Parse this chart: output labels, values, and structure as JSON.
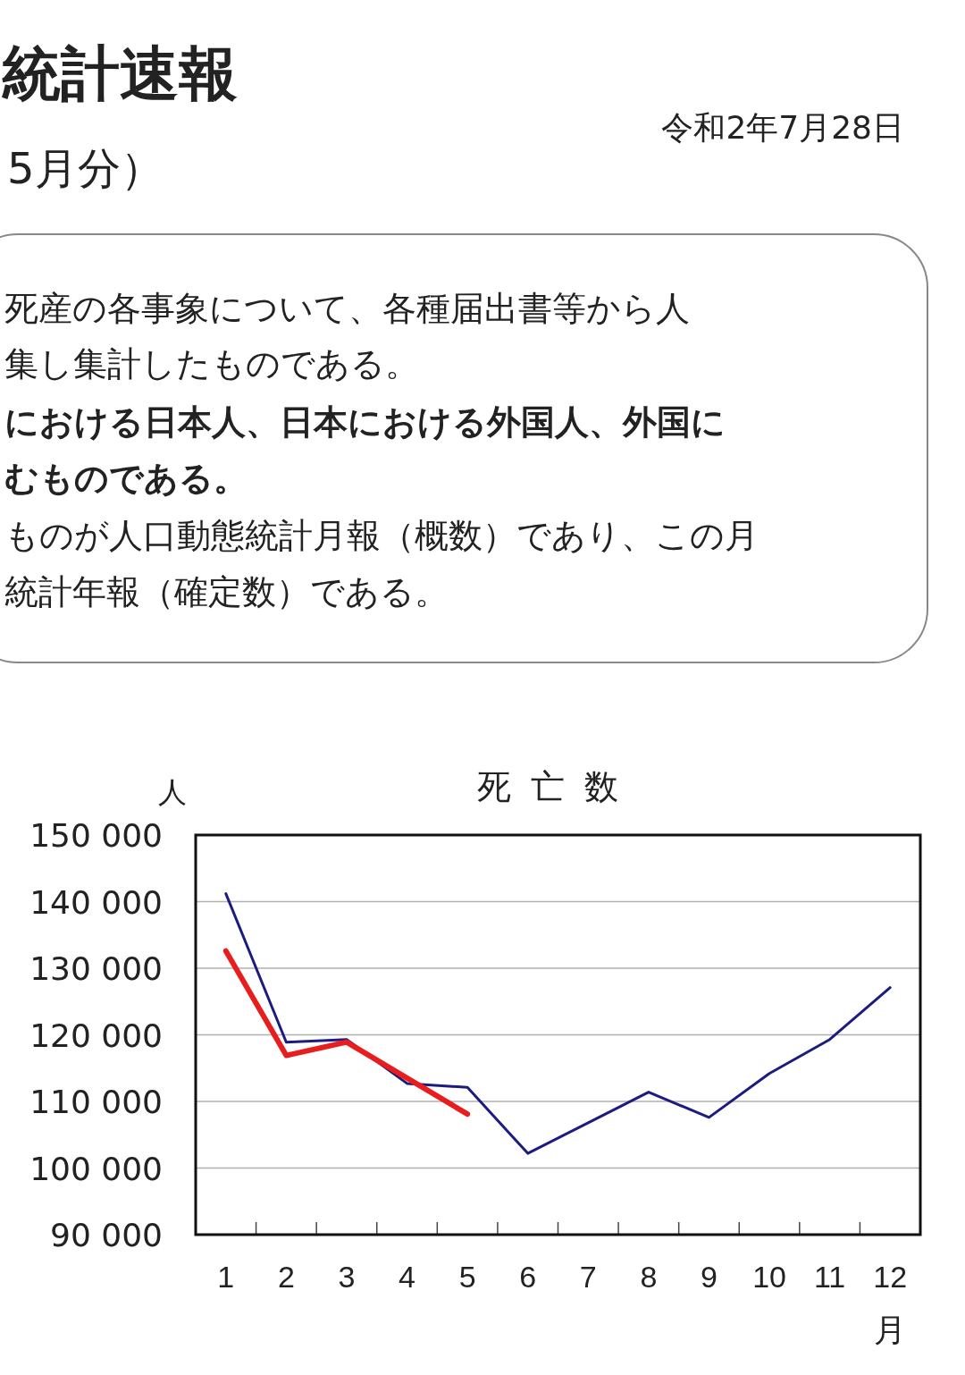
{
  "chart_data": {
    "type": "line",
    "title": "死亡数",
    "ylabel": "人",
    "xlabel": "月",
    "categories": [
      "1",
      "2",
      "3",
      "4",
      "5",
      "6",
      "7",
      "8",
      "9",
      "10",
      "11",
      "12"
    ],
    "series": [
      {
        "color": "#1c1c80",
        "values": [
          141200,
          118900,
          119300,
          112700,
          112100,
          102200,
          106800,
          111400,
          107600,
          114200,
          119300,
          127100
        ]
      },
      {
        "color": "#e81e1e",
        "values": [
          132600,
          116900,
          118900,
          113500,
          108100,
          null,
          null,
          null,
          null,
          null,
          null,
          null
        ]
      }
    ],
    "ylim": [
      90000,
      150000
    ],
    "yticks": [
      {
        "value": 90000,
        "label": "90 000"
      },
      {
        "value": 100000,
        "label": "100 000"
      },
      {
        "value": 110000,
        "label": "110 000"
      },
      {
        "value": 120000,
        "label": "120 000"
      },
      {
        "value": 130000,
        "label": "130 000"
      },
      {
        "value": 140000,
        "label": "140 000"
      },
      {
        "value": 150000,
        "label": "150 000"
      }
    ],
    "grid": "y",
    "marker": "none",
    "line_style": "solid",
    "annotations": [
      "統計速報",
      "5月分）",
      "令和2年7月28日",
      "死産の各事象について、各種届出書等から人",
      "集し集計したものである。",
      "における日本人、日本における外国人、外国に",
      "むものである。",
      "ものが人口動態統計月報（概数）であり、この月",
      "統計年報（確定数）である。"
    ]
  }
}
